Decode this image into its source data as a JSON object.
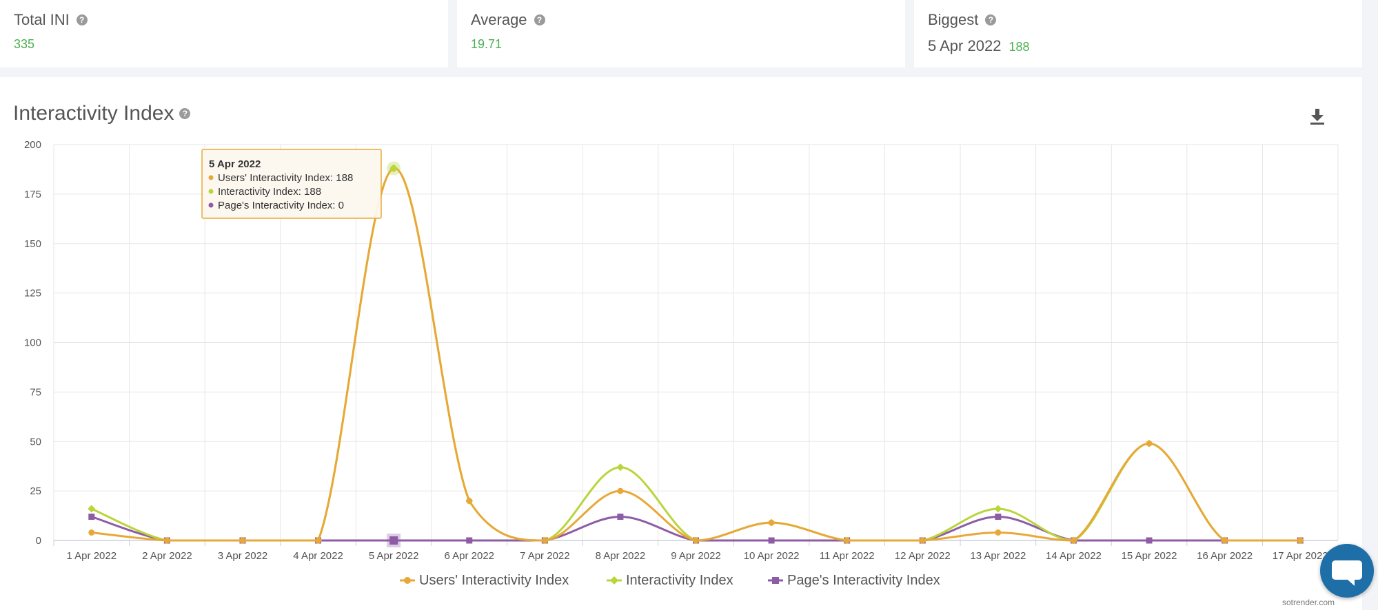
{
  "stats": {
    "total": {
      "label": "Total INI",
      "value": "335"
    },
    "average": {
      "label": "Average",
      "value": "19.71"
    },
    "biggest": {
      "label": "Biggest",
      "date": "5 Apr 2022",
      "value": "188"
    },
    "help_glyph": "?"
  },
  "chart_panel": {
    "title": "Interactivity Index",
    "download_icon": "download-icon"
  },
  "tooltip": {
    "title": "5 Apr 2022",
    "lines": [
      "Users' Interactivity Index: 188",
      "Interactivity Index: 188",
      "Page's Interactivity Index: 0"
    ]
  },
  "footer": {
    "credit": "sotrender.com"
  },
  "colors": {
    "users": "#e8a838",
    "interactivity": "#b9d53c",
    "page": "#8e5ba5"
  },
  "chart_data": {
    "type": "line",
    "categories": [
      "1 Apr 2022",
      "2 Apr 2022",
      "3 Apr 2022",
      "4 Apr 2022",
      "5 Apr 2022",
      "6 Apr 2022",
      "7 Apr 2022",
      "8 Apr 2022",
      "9 Apr 2022",
      "10 Apr 2022",
      "11 Apr 2022",
      "12 Apr 2022",
      "13 Apr 2022",
      "14 Apr 2022",
      "15 Apr 2022",
      "16 Apr 2022",
      "17 Apr 2022"
    ],
    "ylim": [
      0,
      200
    ],
    "yticks": [
      0,
      25,
      50,
      75,
      100,
      125,
      150,
      175,
      200
    ],
    "grid": true,
    "legend_position": "bottom",
    "highlight_index": 4,
    "series": [
      {
        "name": "Users' Interactivity Index",
        "marker": "circle",
        "values": [
          4,
          0,
          0,
          0,
          188,
          20,
          0,
          25,
          0,
          9,
          0,
          0,
          4,
          0,
          49,
          0,
          0
        ]
      },
      {
        "name": "Interactivity Index",
        "marker": "diamond",
        "values": [
          16,
          0,
          0,
          0,
          188,
          20,
          0,
          37,
          0,
          9,
          0,
          0,
          16,
          0,
          49,
          0,
          0
        ]
      },
      {
        "name": "Page's Interactivity Index",
        "marker": "square",
        "values": [
          12,
          0,
          0,
          0,
          0,
          0,
          0,
          12,
          0,
          0,
          0,
          0,
          12,
          0,
          0,
          0,
          0
        ]
      }
    ]
  }
}
